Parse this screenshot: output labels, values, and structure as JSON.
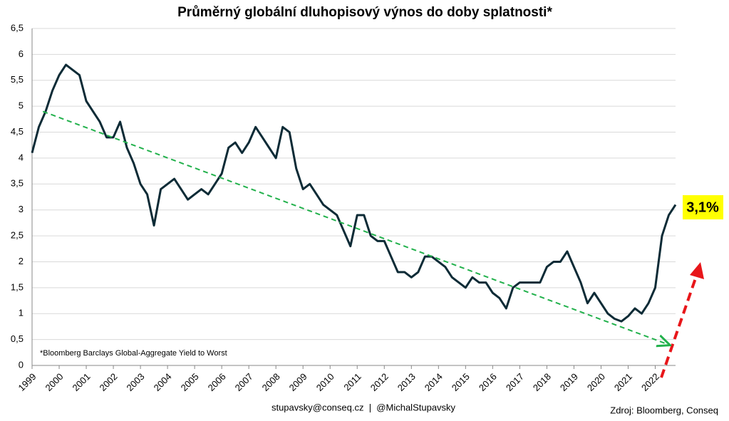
{
  "chart_data": {
    "type": "line",
    "title": "Průměrný globální dluhopisový výnos do doby splatnosti*",
    "footnote": "*Bloomberg Barclays Global-Aggregate Yield to Worst",
    "footer_left": "stupavsky@conseq.cz  |  @MichalStupavsky",
    "footer_right": "Zdroj: Bloomberg, Conseq",
    "annotation": "3,1%",
    "x": [
      1999.0,
      1999.25,
      1999.5,
      1999.75,
      2000.0,
      2000.25,
      2000.5,
      2000.75,
      2001.0,
      2001.25,
      2001.5,
      2001.75,
      2002.0,
      2002.25,
      2002.5,
      2002.75,
      2003.0,
      2003.25,
      2003.5,
      2003.75,
      2004.0,
      2004.25,
      2004.5,
      2004.75,
      2005.0,
      2005.25,
      2005.5,
      2005.75,
      2006.0,
      2006.25,
      2006.5,
      2006.75,
      2007.0,
      2007.25,
      2007.5,
      2007.75,
      2008.0,
      2008.25,
      2008.5,
      2008.75,
      2009.0,
      2009.25,
      2009.5,
      2009.75,
      2010.0,
      2010.25,
      2010.5,
      2010.75,
      2011.0,
      2011.25,
      2011.5,
      2011.75,
      2012.0,
      2012.25,
      2012.5,
      2012.75,
      2013.0,
      2013.25,
      2013.5,
      2013.75,
      2014.0,
      2014.25,
      2014.5,
      2014.75,
      2015.0,
      2015.25,
      2015.5,
      2015.75,
      2016.0,
      2016.25,
      2016.5,
      2016.75,
      2017.0,
      2017.25,
      2017.5,
      2017.75,
      2018.0,
      2018.25,
      2018.5,
      2018.75,
      2019.0,
      2019.25,
      2019.5,
      2019.75,
      2020.0,
      2020.25,
      2020.5,
      2020.75,
      2021.0,
      2021.25,
      2021.5,
      2021.75,
      2022.0,
      2022.25,
      2022.5,
      2022.75
    ],
    "series": [
      {
        "color": "#0d2b36",
        "values": [
          4.1,
          4.6,
          4.9,
          5.3,
          5.6,
          5.8,
          5.7,
          5.6,
          5.1,
          4.9,
          4.7,
          4.4,
          4.4,
          4.7,
          4.2,
          3.9,
          3.5,
          3.3,
          2.7,
          3.4,
          3.5,
          3.6,
          3.4,
          3.2,
          3.3,
          3.4,
          3.3,
          3.5,
          3.7,
          4.2,
          4.3,
          4.1,
          4.3,
          4.6,
          4.4,
          4.2,
          4.0,
          4.6,
          4.5,
          3.8,
          3.4,
          3.5,
          3.3,
          3.1,
          3.0,
          2.9,
          2.6,
          2.3,
          2.9,
          2.9,
          2.5,
          2.4,
          2.4,
          2.1,
          1.8,
          1.8,
          1.7,
          1.8,
          2.1,
          2.1,
          2.0,
          1.9,
          1.7,
          1.6,
          1.5,
          1.7,
          1.6,
          1.6,
          1.4,
          1.3,
          1.1,
          1.5,
          1.6,
          1.6,
          1.6,
          1.6,
          1.9,
          2.0,
          2.0,
          2.2,
          1.9,
          1.6,
          1.2,
          1.4,
          1.2,
          1.0,
          0.9,
          0.85,
          0.95,
          1.1,
          1.0,
          1.2,
          1.5,
          2.5,
          2.9,
          3.1
        ]
      }
    ],
    "trend": {
      "color": "#22b14c",
      "x": [
        1999.4,
        2022.5
      ],
      "values": [
        4.9,
        0.4
      ]
    },
    "xlim": [
      1999,
      2022.75
    ],
    "xticks": [
      1999,
      2000,
      2001,
      2002,
      2003,
      2004,
      2005,
      2006,
      2007,
      2008,
      2009,
      2010,
      2011,
      2012,
      2013,
      2014,
      2015,
      2016,
      2017,
      2018,
      2019,
      2020,
      2021,
      2022
    ],
    "ylim": [
      0,
      6.5
    ],
    "yticks": [
      0,
      {
        "value": 0.5,
        "label": "0,5"
      },
      1,
      {
        "value": 1.5,
        "label": "1,5"
      },
      2,
      {
        "value": 2.5,
        "label": "2,5"
      },
      3,
      {
        "value": 3.5,
        "label": "3,5"
      },
      4,
      {
        "value": 4.5,
        "label": "4,5"
      },
      5,
      {
        "value": 5.5,
        "label": "5,5"
      },
      6,
      {
        "value": 6.5,
        "label": "6,5"
      }
    ],
    "grid": true
  }
}
